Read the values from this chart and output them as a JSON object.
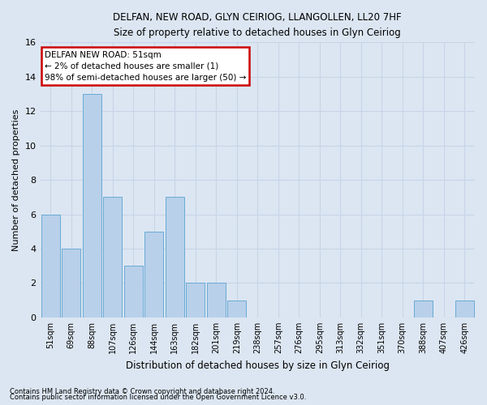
{
  "title1": "DELFAN, NEW ROAD, GLYN CEIRIOG, LLANGOLLEN, LL20 7HF",
  "title2": "Size of property relative to detached houses in Glyn Ceiriog",
  "xlabel": "Distribution of detached houses by size in Glyn Ceiriog",
  "ylabel": "Number of detached properties",
  "footnote1": "Contains HM Land Registry data © Crown copyright and database right 2024.",
  "footnote2": "Contains public sector information licensed under the Open Government Licence v3.0.",
  "annotation_title": "DELFAN NEW ROAD: 51sqm",
  "annotation_line1": "← 2% of detached houses are smaller (1)",
  "annotation_line2": "98% of semi-detached houses are larger (50) →",
  "categories": [
    "51sqm",
    "69sqm",
    "88sqm",
    "107sqm",
    "126sqm",
    "144sqm",
    "163sqm",
    "182sqm",
    "201sqm",
    "219sqm",
    "238sqm",
    "257sqm",
    "276sqm",
    "295sqm",
    "313sqm",
    "332sqm",
    "351sqm",
    "370sqm",
    "388sqm",
    "407sqm",
    "426sqm"
  ],
  "values": [
    6,
    4,
    13,
    7,
    3,
    5,
    7,
    2,
    2,
    1,
    0,
    0,
    0,
    0,
    0,
    0,
    0,
    0,
    1,
    0,
    1
  ],
  "bar_color_normal": "#b8d0ea",
  "bar_edge_color": "#6aaad4",
  "annotation_box_color": "#ffffff",
  "annotation_box_edge": "#cc0000",
  "grid_color": "#c8d4e8",
  "background_color": "#dce6f2",
  "ylim": [
    0,
    16
  ],
  "yticks": [
    0,
    2,
    4,
    6,
    8,
    10,
    12,
    14,
    16
  ]
}
